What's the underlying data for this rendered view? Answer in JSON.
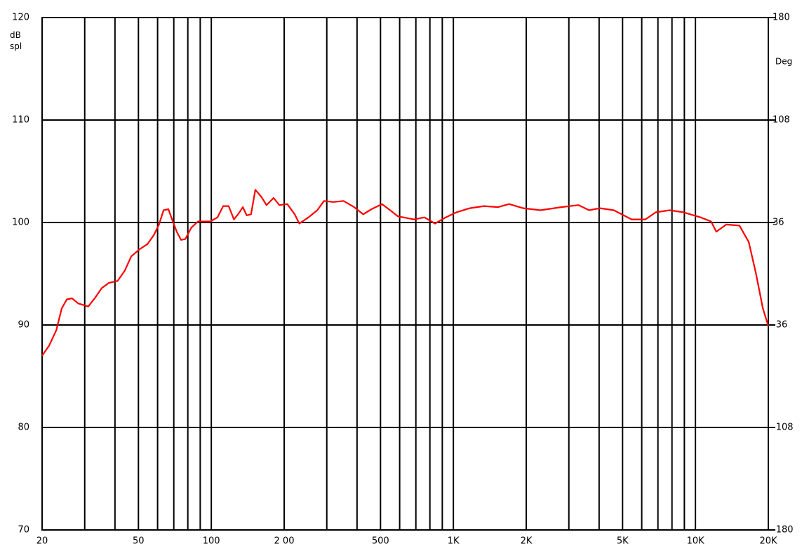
{
  "chart_data": {
    "type": "line",
    "ylabel": "dB spl",
    "y2label": "Deg",
    "xscale": "log",
    "xlim": [
      20,
      20000
    ],
    "xticks": [
      20,
      50,
      100,
      {
        "value": 200,
        "label": "2 00"
      },
      500,
      {
        "value": 1000,
        "label": "1K"
      },
      {
        "value": 2000,
        "label": "2K"
      },
      {
        "value": 5000,
        "label": "5K"
      },
      {
        "value": 10000,
        "label": "10K"
      },
      {
        "value": 20000,
        "label": "20K"
      }
    ],
    "xminor": [
      30,
      40,
      60,
      70,
      80,
      90,
      300,
      400,
      600,
      700,
      800,
      900,
      3000,
      4000,
      6000,
      7000,
      8000,
      9000
    ],
    "ylim": [
      70,
      120
    ],
    "yticks": [
      70,
      80,
      90,
      100,
      110,
      120
    ],
    "y2lim": [
      -180,
      180
    ],
    "y2ticks": [
      -180,
      -108,
      -36,
      36,
      108,
      180
    ],
    "grid": true,
    "x": [
      20,
      21.4,
      22.9,
      24.1,
      25.3,
      26.6,
      28.2,
      31,
      33,
      35.3,
      37.7,
      41,
      43.9,
      46.7,
      50.6,
      54.5,
      58,
      60.8,
      63.5,
      66.5,
      68.4,
      72,
      75,
      78.2,
      82.7,
      88.1,
      99.2,
      106,
      112,
      118,
      124,
      129,
      135,
      140,
      146,
      152,
      161,
      169,
      181,
      191,
      206,
      221,
      231,
      252,
      274,
      292,
      319,
      352,
      389,
      424,
      459,
      507,
      541,
      590,
      687,
      760,
      840,
      930,
      1030,
      1170,
      1340,
      1530,
      1700,
      1940,
      2290,
      2790,
      3290,
      3640,
      4030,
      4600,
      5450,
      6210,
      6860,
      7830,
      8920,
      10500,
      11600,
      12200,
      13400,
      15200,
      16600,
      17800,
      19000,
      20000
    ],
    "series": [
      {
        "name": "SPL",
        "color": "#ff0000",
        "values": [
          87.0,
          88.0,
          89.5,
          91.6,
          92.5,
          92.6,
          92.1,
          91.8,
          92.6,
          93.6,
          94.1,
          94.3,
          95.3,
          96.7,
          97.4,
          97.9,
          98.8,
          99.8,
          101.2,
          101.3,
          100.5,
          99.1,
          98.3,
          98.4,
          99.5,
          100.1,
          100.1,
          100.5,
          101.6,
          101.6,
          100.3,
          100.8,
          101.5,
          100.7,
          100.8,
          103.2,
          102.5,
          101.7,
          102.4,
          101.7,
          101.8,
          100.8,
          99.9,
          100.5,
          101.2,
          102.1,
          102.0,
          102.1,
          101.5,
          100.8,
          101.3,
          101.8,
          101.3,
          100.6,
          100.3,
          100.5,
          99.9,
          100.5,
          101.0,
          101.4,
          101.6,
          101.5,
          101.8,
          101.4,
          101.2,
          101.5,
          101.7,
          101.2,
          101.4,
          101.2,
          100.3,
          100.3,
          101.0,
          101.2,
          101.0,
          100.5,
          100.1,
          99.1,
          99.8,
          99.7,
          98.1,
          95.0,
          91.6,
          89.9
        ]
      }
    ]
  }
}
